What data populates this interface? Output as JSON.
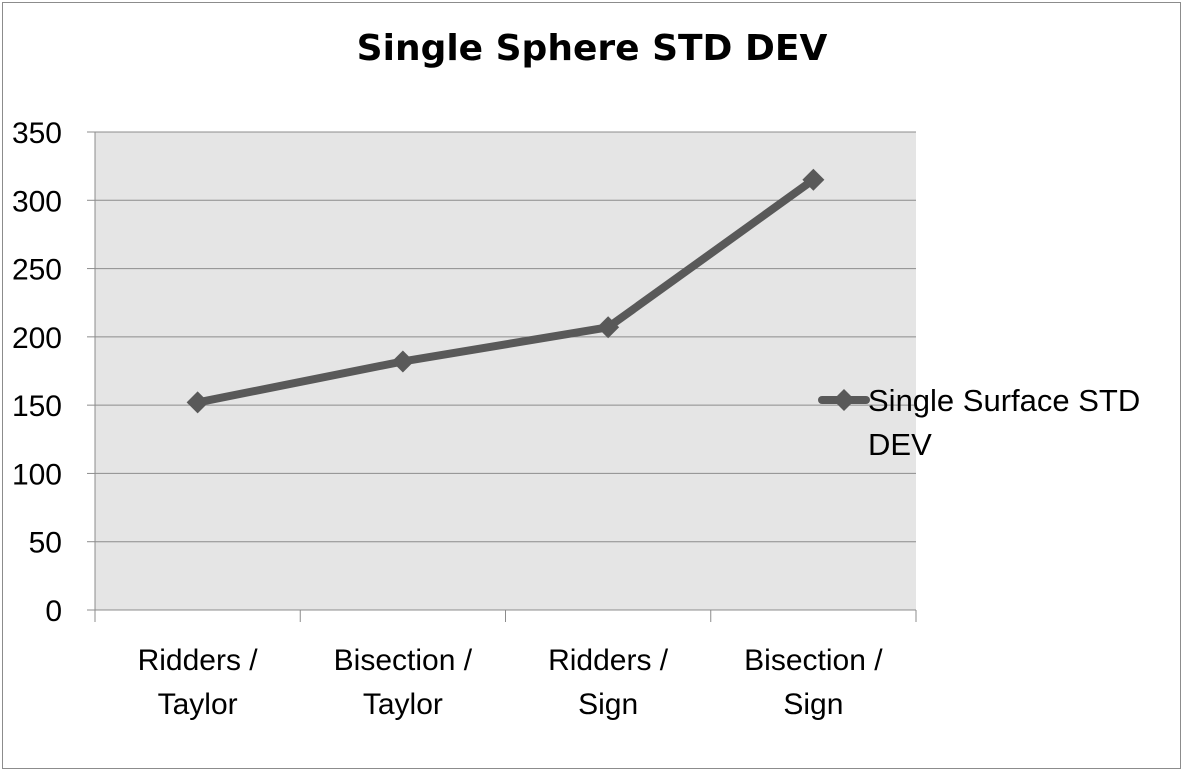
{
  "chart_data": {
    "type": "line",
    "title": "Single Sphere STD DEV",
    "xlabel": "",
    "ylabel": "",
    "categories": [
      [
        "Ridders /",
        "Taylor"
      ],
      [
        "Bisection /",
        "Taylor"
      ],
      [
        "Ridders /",
        "Sign"
      ],
      [
        "Bisection /",
        "Sign"
      ]
    ],
    "series": [
      {
        "name": "Single Surface STD DEV",
        "name_lines": [
          "Single Surface STD",
          "DEV"
        ],
        "values": [
          152,
          182,
          207,
          315
        ],
        "color": "#595959",
        "marker": "diamond"
      }
    ],
    "ylim": [
      0,
      350
    ],
    "yticks": [
      "0",
      "50",
      "100",
      "150",
      "200",
      "250",
      "300",
      "350"
    ],
    "grid": true,
    "plot_background": "#e5e5e5",
    "legend": "right"
  }
}
